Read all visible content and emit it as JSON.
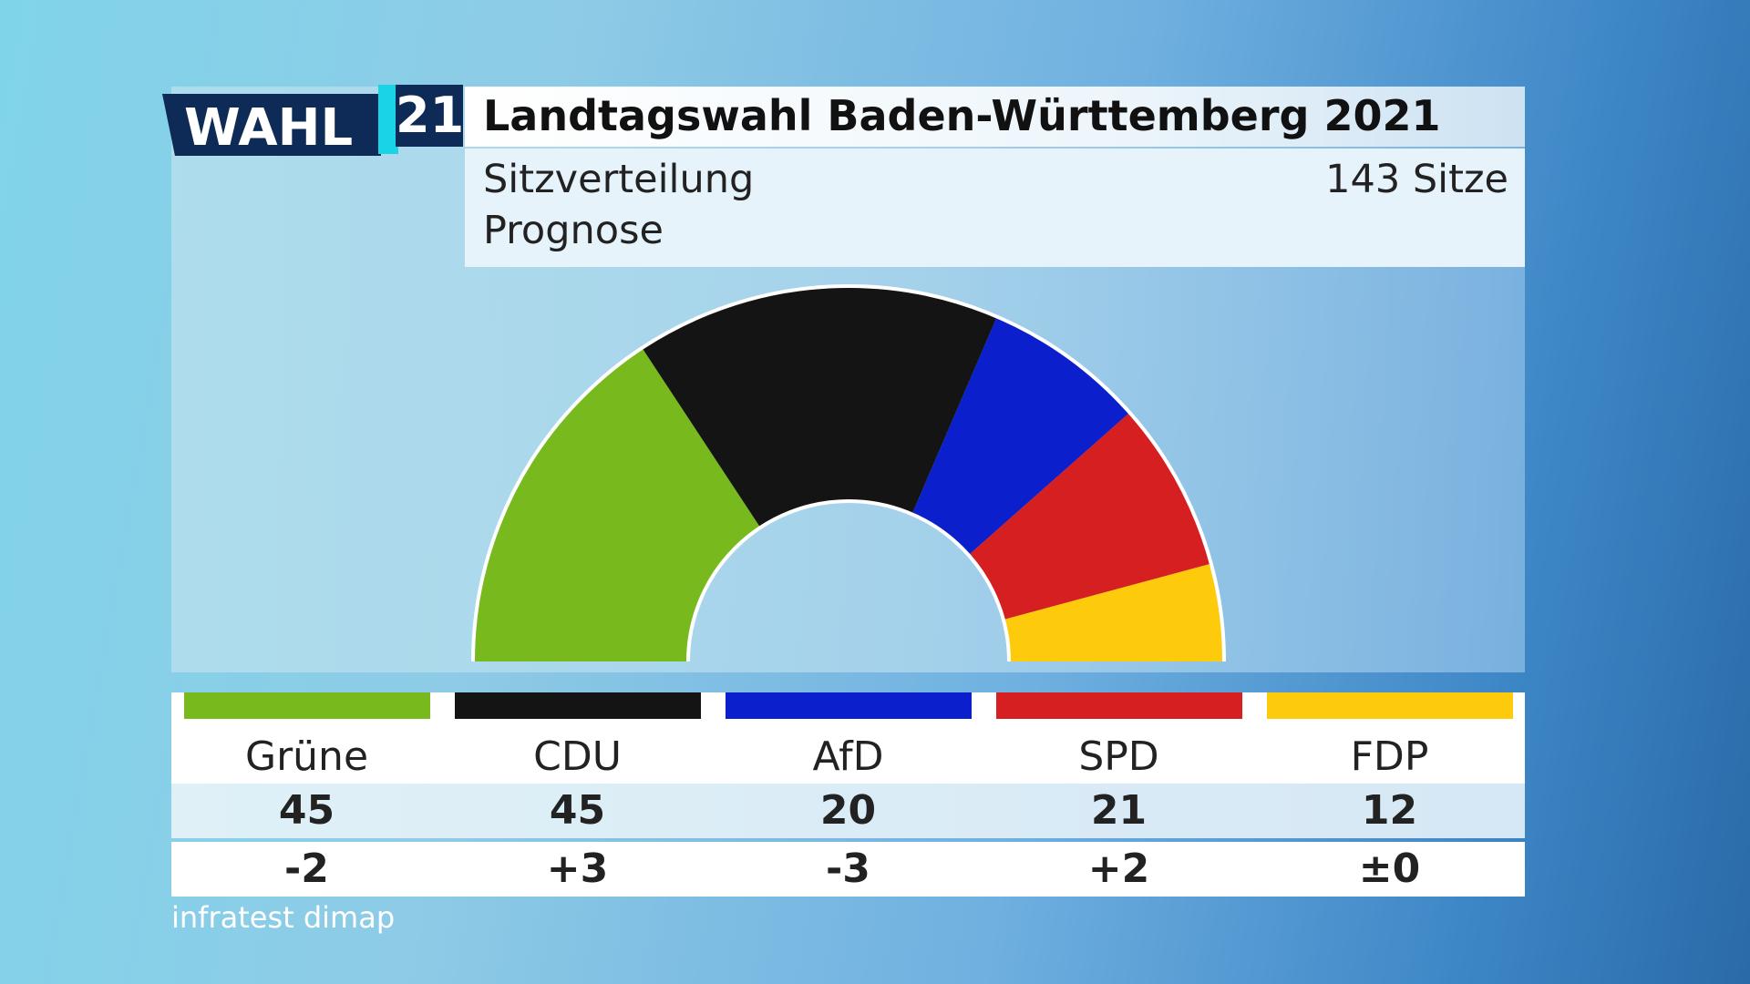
{
  "header": {
    "logo_text": "WAHL",
    "logo_number": "21",
    "title": "Landtagswahl Baden-Württemberg 2021",
    "subtitle_line1": "Sitzverteilung",
    "subtitle_line2": "Prognose",
    "total_seats_label": "143 Sitze"
  },
  "colors": {
    "logo_navy": "#0e2a56",
    "logo_cyan": "#19d4e6"
  },
  "chart_data": {
    "type": "pie",
    "subtype": "semicircle-parliament",
    "title": "Landtagswahl Baden-Württemberg 2021",
    "subtitle": "Sitzverteilung Prognose",
    "total": 143,
    "categories": [
      "Grüne",
      "CDU",
      "AfD",
      "SPD",
      "FDP"
    ],
    "values": [
      45,
      45,
      20,
      21,
      12
    ],
    "changes": [
      "-2",
      "+3",
      "-3",
      "+2",
      "±0"
    ],
    "colors": [
      "#78b91e",
      "#141414",
      "#0b1fcc",
      "#d61f20",
      "#fdcb0b"
    ]
  },
  "source": "infratest dimap"
}
